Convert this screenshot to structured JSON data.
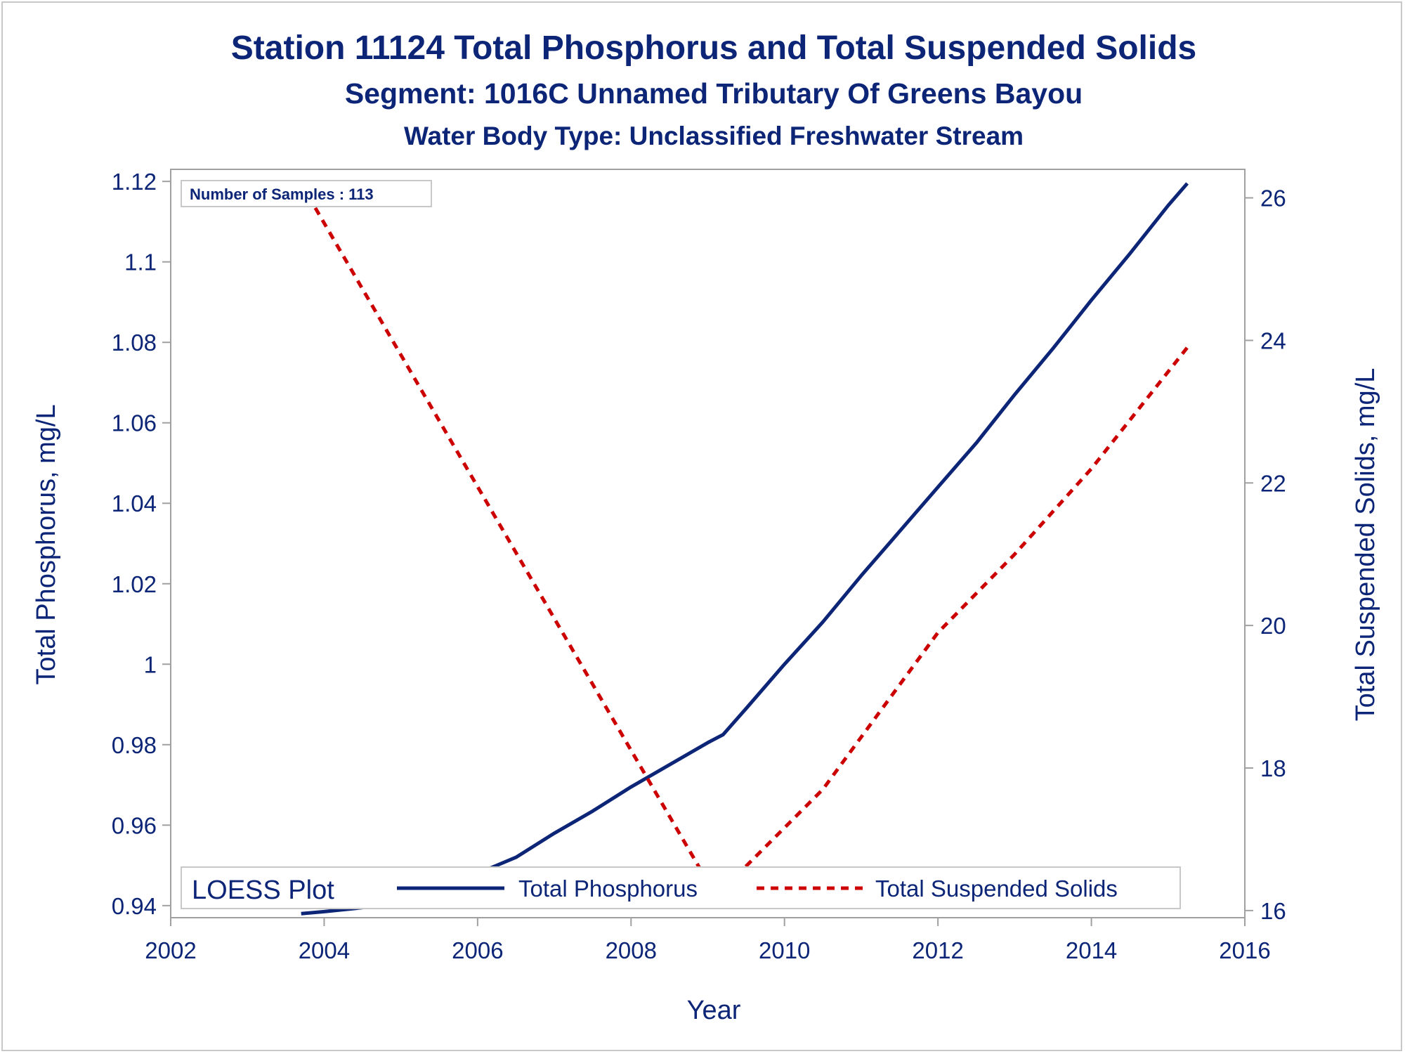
{
  "titles": {
    "line1": "Station 11124  Total Phosphorus and Total Suspended Solids",
    "line2": "Segment: 1016C  Unnamed Tributary Of Greens Bayou",
    "line3": "Water Body Type: Unclassified Freshwater Stream"
  },
  "samples_label": "Number of Samples : 113",
  "legend": {
    "title": "LOESS Plot",
    "tp_label": "Total Phosphorus",
    "tss_label": "Total Suspended Solids"
  },
  "colors": {
    "text": "#0c2577",
    "tp_line": "#0c2577",
    "tss_line": "#cc0000",
    "axis": "#a0a0a0"
  },
  "chart_data": {
    "type": "line",
    "xlabel": "Year",
    "ylabel_left": "Total Phosphorus, mg/L",
    "ylabel_right": "Total Suspended Solids, mg/L",
    "xlim": [
      2002,
      2016
    ],
    "ylim_left": [
      0.937,
      1.123
    ],
    "ylim_right": [
      15.9,
      26.4
    ],
    "x_ticks": [
      "2002",
      "2004",
      "2006",
      "2008",
      "2010",
      "2012",
      "2014",
      "2016"
    ],
    "y_left_ticks": [
      "0.94",
      "0.96",
      "0.98",
      "1",
      "1.02",
      "1.04",
      "1.06",
      "1.08",
      "1.1",
      "1.12"
    ],
    "y_right_ticks": [
      "16",
      "18",
      "20",
      "22",
      "24",
      "26"
    ],
    "grid": false,
    "legend_position": "bottom",
    "series": [
      {
        "name": "Total Phosphorus",
        "axis": "left",
        "style": "solid",
        "x": [
          2003.7,
          2004.0,
          2004.5,
          2005.0,
          2005.5,
          2006.0,
          2006.5,
          2007.0,
          2007.5,
          2008.0,
          2008.5,
          2009.0,
          2009.2,
          2009.5,
          2010.0,
          2010.5,
          2011.0,
          2011.5,
          2012.0,
          2012.5,
          2013.0,
          2013.5,
          2014.0,
          2014.5,
          2015.0,
          2015.25
        ],
        "y": [
          0.938,
          0.9385,
          0.9395,
          0.941,
          0.944,
          0.948,
          0.952,
          0.958,
          0.9635,
          0.9695,
          0.975,
          0.9805,
          0.9825,
          0.989,
          1.0,
          1.0105,
          1.022,
          1.033,
          1.044,
          1.055,
          1.067,
          1.0785,
          1.0905,
          1.102,
          1.114,
          1.1195
        ]
      },
      {
        "name": "Total Suspended Solids",
        "axis": "right",
        "style": "dashed",
        "x": [
          2003.7,
          2009.0,
          2009.2,
          2010.5,
          2012.0,
          2013.0,
          2014.0,
          2015.25
        ],
        "y": [
          26.2,
          16.4,
          16.3,
          17.7,
          19.9,
          21.0,
          22.2,
          23.9
        ]
      }
    ]
  }
}
